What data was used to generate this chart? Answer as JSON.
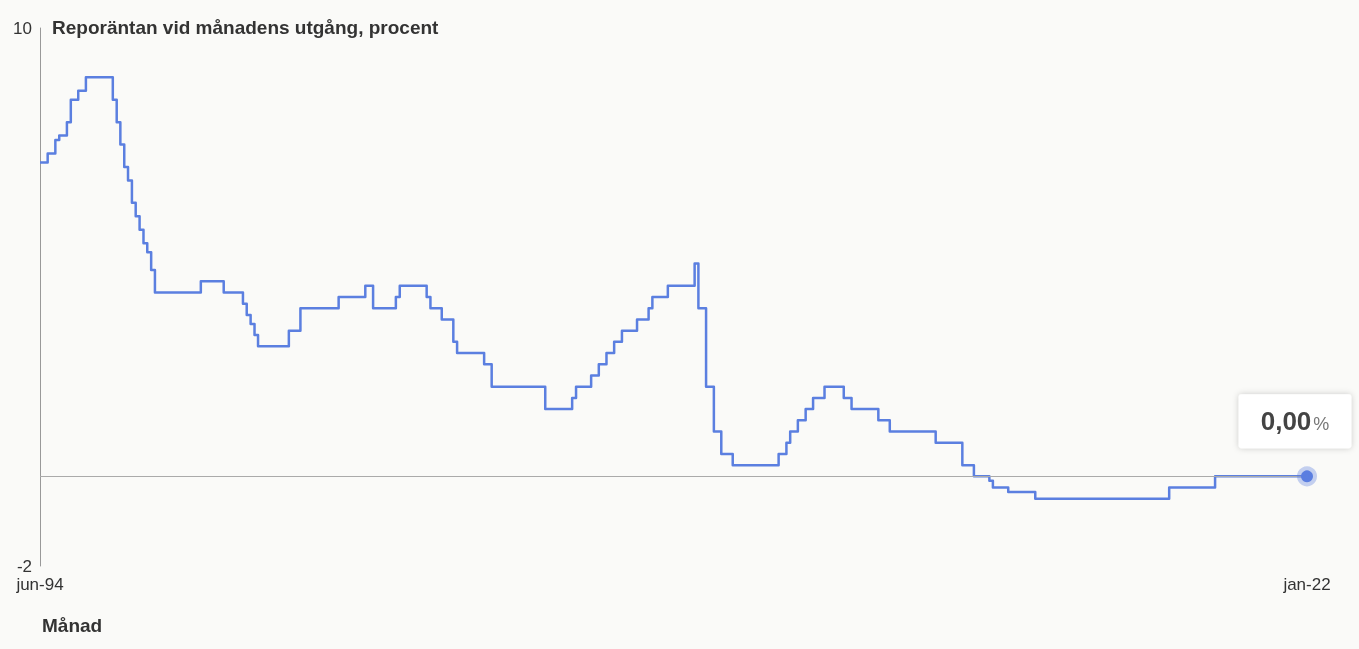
{
  "chart_data": {
    "type": "step",
    "ylabel": "Reporäntan vid månadens utgång, procent",
    "xlabel": "Månad",
    "x": [
      "1994-06",
      "1994-08",
      "1994-10",
      "1994-11",
      "1995-01",
      "1995-02",
      "1995-04",
      "1995-06",
      "1996-01",
      "1996-02",
      "1996-03",
      "1996-04",
      "1996-05",
      "1996-06",
      "1996-07",
      "1996-08",
      "1996-09",
      "1996-10",
      "1996-11",
      "1996-12",
      "1997-12",
      "1998-06",
      "1998-11",
      "1998-12",
      "1999-01",
      "1999-02",
      "1999-03",
      "1999-11",
      "2000-02",
      "2000-12",
      "2001-07",
      "2001-09",
      "2002-03",
      "2002-04",
      "2002-11",
      "2002-12",
      "2003-03",
      "2003-06",
      "2003-07",
      "2004-02",
      "2004-04",
      "2005-06",
      "2006-01",
      "2006-02",
      "2006-06",
      "2006-08",
      "2006-10",
      "2006-12",
      "2007-02",
      "2007-06",
      "2007-09",
      "2007-10",
      "2008-02",
      "2008-09",
      "2008-10",
      "2008-12",
      "2009-02",
      "2009-04",
      "2009-07",
      "2010-07",
      "2010-09",
      "2010-10",
      "2010-12",
      "2011-02",
      "2011-04",
      "2011-07",
      "2011-12",
      "2012-02",
      "2012-09",
      "2012-12",
      "2013-12",
      "2014-07",
      "2014-10",
      "2015-02",
      "2015-03",
      "2015-07",
      "2016-02",
      "2019-01",
      "2020-01",
      "2022-01"
    ],
    "values": [
      7.0,
      7.2,
      7.5,
      7.6,
      7.9,
      8.4,
      8.6,
      8.9,
      8.4,
      7.9,
      7.4,
      6.9,
      6.6,
      6.1,
      5.8,
      5.5,
      5.2,
      5.0,
      4.6,
      4.1,
      4.35,
      4.1,
      3.85,
      3.6,
      3.4,
      3.15,
      2.9,
      3.25,
      3.75,
      4.0,
      4.25,
      3.75,
      4.0,
      4.25,
      4.0,
      3.75,
      3.5,
      3.0,
      2.75,
      2.5,
      2.0,
      1.5,
      1.75,
      2.0,
      2.25,
      2.5,
      2.75,
      3.0,
      3.25,
      3.5,
      3.75,
      4.0,
      4.25,
      4.75,
      3.75,
      2.0,
      1.0,
      0.5,
      0.25,
      0.5,
      0.75,
      1.0,
      1.25,
      1.5,
      1.75,
      2.0,
      1.75,
      1.5,
      1.25,
      1.0,
      0.75,
      0.25,
      0.0,
      -0.1,
      -0.25,
      -0.35,
      -0.5,
      -0.25,
      0.0,
      0.0
    ],
    "color": "#5b7fe0",
    "marker": "none",
    "xlim": [
      "1994-06",
      "2022-01"
    ],
    "xticks": [
      {
        "value": "1994-06",
        "label": "jun-94"
      },
      {
        "value": "2022-01",
        "label": "jan-22"
      }
    ],
    "ylim": [
      -2,
      10
    ],
    "yticks": [
      -2,
      10
    ],
    "ref_lines": [
      {
        "axis": "y",
        "value": 0,
        "label": null,
        "color": "#aaaaaa"
      }
    ],
    "annotations": [
      {
        "text": "0,00%",
        "x": "2022-01",
        "y": 0
      }
    ]
  }
}
